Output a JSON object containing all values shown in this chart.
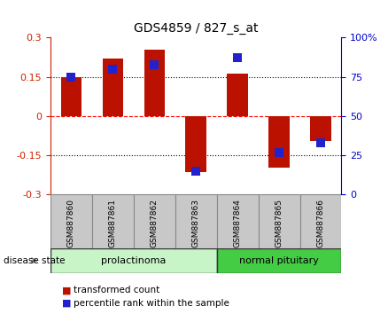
{
  "title": "GDS4859 / 827_s_at",
  "samples": [
    "GSM887860",
    "GSM887861",
    "GSM887862",
    "GSM887863",
    "GSM887864",
    "GSM887865",
    "GSM887866"
  ],
  "transformed_counts": [
    0.15,
    0.22,
    0.255,
    -0.215,
    0.163,
    -0.195,
    -0.095
  ],
  "percentile_ranks": [
    75,
    80,
    83,
    15,
    87,
    27,
    33
  ],
  "ylim_left": [
    -0.3,
    0.3
  ],
  "ylim_right": [
    0,
    100
  ],
  "yticks_left": [
    -0.3,
    -0.15,
    0,
    0.15,
    0.3
  ],
  "yticks_right": [
    0,
    25,
    50,
    75,
    100
  ],
  "hline_dotted": [
    0.15,
    -0.15
  ],
  "hline_dashed_red": 0.0,
  "bar_color": "#bb1100",
  "dot_color": "#2222cc",
  "bar_width": 0.5,
  "dot_size": 50,
  "group_prolactinoma_color": "#c8f5c8",
  "group_normal_color": "#44cc44",
  "group_prolactinoma_label": "prolactinoma",
  "group_normal_label": "normal pituitary",
  "disease_state_label": "disease state",
  "legend_items": [
    {
      "label": "transformed count",
      "color": "#bb1100"
    },
    {
      "label": "percentile rank within the sample",
      "color": "#2222cc"
    }
  ],
  "bg_color": "#ffffff",
  "left_tick_color": "#cc2200",
  "right_tick_color": "#0000cc",
  "sample_box_color": "#c8c8c8",
  "sample_box_edge": "#888888"
}
